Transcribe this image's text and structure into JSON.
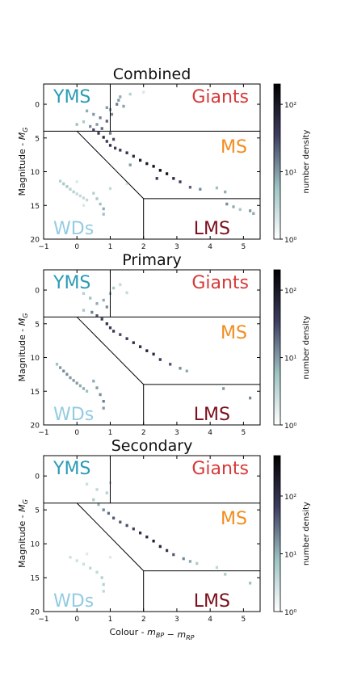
{
  "figure": {
    "shared_xlabel_text": "Colour - ",
    "shared_xlabel_math": "m_BP − m_RP",
    "ylabel_text": "Magnitude - ",
    "ylabel_math": "M_G",
    "colorbar_label": "number density",
    "region_labels": {
      "YMS": {
        "text": "YMS",
        "color": "#2a9bb5"
      },
      "Giants": {
        "text": "Giants",
        "color": "#d63a3a"
      },
      "MS": {
        "text": "MS",
        "color": "#f28c1c"
      },
      "WDs": {
        "text": "WDs",
        "color": "#94cbe2"
      },
      "LMS": {
        "text": "LMS",
        "color": "#7a0e1a"
      }
    },
    "colormap": [
      "#ffffff",
      "#9fc4c4",
      "#3d3d60",
      "#000000"
    ]
  },
  "chart_data": [
    {
      "type": "heatmap",
      "title": "Combined",
      "xlabel": "",
      "ylabel": "Magnitude - M_G",
      "xlim": [
        -1,
        5.5
      ],
      "ylim": [
        20,
        -3
      ],
      "y_inverted": true,
      "xticks": [
        -1,
        0,
        1,
        2,
        3,
        4,
        5
      ],
      "yticks": [
        0,
        5,
        10,
        15,
        20
      ],
      "colorbar": {
        "label": "number density",
        "scale": "log",
        "ticks": [
          "10⁰",
          "10¹",
          "10²"
        ],
        "range": [
          1,
          200
        ]
      },
      "cells": [
        [
          0.3,
          1.0,
          8
        ],
        [
          0.5,
          1.5,
          10
        ],
        [
          0.7,
          2.0,
          14
        ],
        [
          0.9,
          0.5,
          10
        ],
        [
          0.9,
          2.5,
          20
        ],
        [
          1.05,
          1.5,
          12
        ],
        [
          1.2,
          0.0,
          15
        ],
        [
          1.25,
          -0.6,
          10
        ],
        [
          1.3,
          -1.1,
          8
        ],
        [
          1.4,
          0.3,
          9
        ],
        [
          1.0,
          0.8,
          8
        ],
        [
          1.6,
          -1.5,
          4
        ],
        [
          2.0,
          -1.8,
          2
        ],
        [
          0.0,
          3.0,
          6
        ],
        [
          0.2,
          2.6,
          5
        ],
        [
          0.4,
          3.3,
          12
        ],
        [
          0.5,
          3.8,
          30
        ],
        [
          0.6,
          3.0,
          10
        ],
        [
          0.65,
          4.3,
          40
        ],
        [
          0.75,
          3.6,
          20
        ],
        [
          0.8,
          4.9,
          60
        ],
        [
          0.9,
          5.5,
          40
        ],
        [
          1.0,
          4.3,
          15
        ],
        [
          1.1,
          5.2,
          30
        ],
        [
          1.0,
          6.1,
          50
        ],
        [
          1.15,
          6.5,
          40
        ],
        [
          1.3,
          6.8,
          40
        ],
        [
          1.5,
          7.2,
          50
        ],
        [
          1.7,
          7.7,
          60
        ],
        [
          1.9,
          8.3,
          80
        ],
        [
          2.1,
          8.8,
          100
        ],
        [
          2.3,
          9.2,
          120
        ],
        [
          2.5,
          9.8,
          130
        ],
        [
          2.7,
          10.3,
          110
        ],
        [
          2.9,
          11.0,
          60
        ],
        [
          3.1,
          11.5,
          40
        ],
        [
          3.4,
          12.3,
          20
        ],
        [
          3.7,
          12.6,
          12
        ],
        [
          2.4,
          11.0,
          40
        ],
        [
          1.6,
          9.0,
          10
        ],
        [
          4.2,
          12.4,
          6
        ],
        [
          4.45,
          13.0,
          8
        ],
        [
          4.5,
          14.8,
          12
        ],
        [
          4.7,
          15.2,
          8
        ],
        [
          5.2,
          15.8,
          10
        ],
        [
          5.3,
          16.2,
          8
        ],
        [
          4.9,
          15.6,
          5
        ],
        [
          -0.5,
          11.4,
          4
        ],
        [
          -0.4,
          11.8,
          5
        ],
        [
          -0.3,
          12.2,
          5
        ],
        [
          -0.2,
          12.6,
          4
        ],
        [
          -0.1,
          13.0,
          4
        ],
        [
          0.0,
          13.3,
          3
        ],
        [
          0.1,
          13.6,
          3
        ],
        [
          0.2,
          13.9,
          3
        ],
        [
          0.3,
          14.2,
          3
        ],
        [
          0.5,
          13.2,
          4
        ],
        [
          0.6,
          14.0,
          5
        ],
        [
          0.7,
          14.8,
          6
        ],
        [
          0.8,
          15.5,
          8
        ],
        [
          0.8,
          16.3,
          6
        ],
        [
          0.0,
          11.5,
          2
        ],
        [
          1.0,
          12.5,
          3
        ],
        [
          1.5,
          11.8,
          2
        ],
        [
          0.2,
          15.0,
          2
        ]
      ]
    },
    {
      "type": "heatmap",
      "title": "Primary",
      "xlabel": "",
      "ylabel": "Magnitude - M_G",
      "xlim": [
        -1,
        5.5
      ],
      "ylim": [
        20,
        -3
      ],
      "y_inverted": true,
      "xticks": [
        -1,
        0,
        1,
        2,
        3,
        4,
        5
      ],
      "yticks": [
        0,
        5,
        10,
        15,
        20
      ],
      "colorbar": {
        "label": "number density",
        "scale": "log",
        "ticks": [
          "10⁰",
          "10¹",
          "10²"
        ],
        "range": [
          1,
          200
        ]
      },
      "cells": [
        [
          0.2,
          0.5,
          4
        ],
        [
          0.4,
          1.2,
          6
        ],
        [
          0.6,
          2.0,
          8
        ],
        [
          0.8,
          1.5,
          8
        ],
        [
          0.9,
          2.5,
          12
        ],
        [
          1.0,
          0.5,
          6
        ],
        [
          1.1,
          -0.3,
          5
        ],
        [
          1.3,
          -0.8,
          3
        ],
        [
          1.5,
          0.4,
          3
        ],
        [
          0.2,
          3.0,
          5
        ],
        [
          0.45,
          3.3,
          15
        ],
        [
          0.6,
          3.8,
          25
        ],
        [
          0.75,
          4.3,
          35
        ],
        [
          0.9,
          5.0,
          50
        ],
        [
          1.0,
          5.6,
          40
        ],
        [
          1.1,
          6.1,
          40
        ],
        [
          1.3,
          6.6,
          30
        ],
        [
          1.5,
          7.2,
          40
        ],
        [
          1.7,
          7.8,
          50
        ],
        [
          1.9,
          8.4,
          60
        ],
        [
          2.1,
          9.0,
          70
        ],
        [
          2.3,
          9.5,
          60
        ],
        [
          2.5,
          10.3,
          40
        ],
        [
          2.8,
          11.0,
          25
        ],
        [
          3.1,
          11.6,
          12
        ],
        [
          3.3,
          12.0,
          8
        ],
        [
          4.4,
          14.6,
          10
        ],
        [
          5.2,
          16.0,
          12
        ],
        [
          -0.6,
          11.0,
          6
        ],
        [
          -0.5,
          11.5,
          10
        ],
        [
          -0.4,
          12.0,
          12
        ],
        [
          -0.3,
          12.5,
          12
        ],
        [
          -0.2,
          13.0,
          10
        ],
        [
          -0.1,
          13.4,
          10
        ],
        [
          0.0,
          13.8,
          10
        ],
        [
          0.1,
          14.2,
          8
        ],
        [
          0.2,
          14.6,
          8
        ],
        [
          0.3,
          15.0,
          6
        ],
        [
          0.5,
          13.5,
          8
        ],
        [
          0.6,
          14.5,
          10
        ],
        [
          0.7,
          15.5,
          12
        ],
        [
          0.8,
          16.5,
          14
        ],
        [
          0.8,
          17.5,
          10
        ]
      ]
    },
    {
      "type": "heatmap",
      "title": "Secondary",
      "xlabel": "Colour - m_BP − m_RP",
      "ylabel": "Magnitude - M_G",
      "xlim": [
        -1,
        5.5
      ],
      "ylim": [
        20,
        -3
      ],
      "y_inverted": true,
      "xticks": [
        -1,
        0,
        1,
        2,
        3,
        4,
        5
      ],
      "yticks": [
        0,
        5,
        10,
        15,
        20
      ],
      "colorbar": {
        "label": "number density",
        "scale": "log",
        "ticks": [
          "10⁰",
          "10¹",
          "10²"
        ],
        "range": [
          1,
          500
        ]
      },
      "cells": [
        [
          0.3,
          1.2,
          3
        ],
        [
          0.6,
          2.0,
          4
        ],
        [
          0.9,
          2.5,
          5
        ],
        [
          1.0,
          1.0,
          3
        ],
        [
          0.5,
          3.5,
          6
        ],
        [
          0.65,
          4.2,
          10
        ],
        [
          0.8,
          5.0,
          20
        ],
        [
          0.95,
          5.5,
          30
        ],
        [
          1.1,
          6.2,
          40
        ],
        [
          1.3,
          6.8,
          40
        ],
        [
          1.5,
          7.3,
          50
        ],
        [
          1.7,
          7.8,
          60
        ],
        [
          1.9,
          8.4,
          100
        ],
        [
          2.1,
          9.0,
          120
        ],
        [
          2.3,
          9.6,
          150
        ],
        [
          2.5,
          10.4,
          140
        ],
        [
          2.7,
          11.0,
          80
        ],
        [
          2.9,
          11.6,
          40
        ],
        [
          3.2,
          12.2,
          20
        ],
        [
          3.4,
          12.6,
          12
        ],
        [
          3.6,
          12.9,
          6
        ],
        [
          4.2,
          13.5,
          4
        ],
        [
          4.45,
          14.5,
          6
        ],
        [
          5.2,
          15.8,
          8
        ],
        [
          -0.2,
          12.0,
          3
        ],
        [
          0.0,
          12.5,
          3
        ],
        [
          0.2,
          13.0,
          3
        ],
        [
          0.4,
          13.6,
          4
        ],
        [
          0.6,
          14.2,
          4
        ],
        [
          0.75,
          15.0,
          5
        ],
        [
          0.8,
          16.0,
          5
        ],
        [
          0.8,
          17.0,
          4
        ],
        [
          0.3,
          11.5,
          2
        ],
        [
          1.0,
          12.0,
          2
        ]
      ]
    }
  ]
}
